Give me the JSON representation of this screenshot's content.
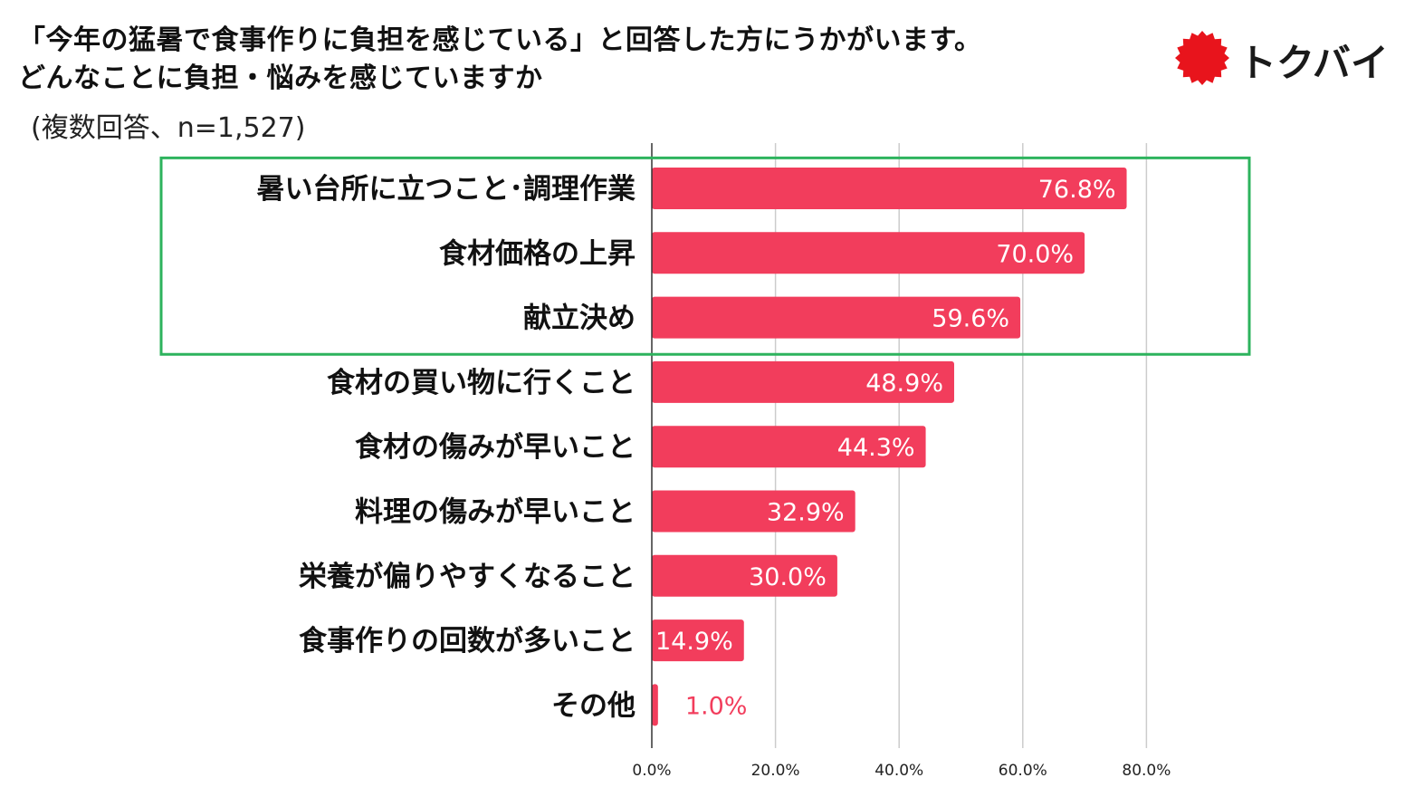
{
  "header": {
    "title_line1": "「今年の猛暑で食事作りに負担を感じている」と回答した方にうかがいます。",
    "title_line2": "どんなことに負担・悩みを感じていますか",
    "subtitle": "(複数回答、n=1,527)"
  },
  "logo": {
    "text": "トクバイ",
    "mark_color": "#e8141c"
  },
  "chart_data": {
    "type": "bar",
    "orientation": "horizontal",
    "title": "「今年の猛暑で食事作りに負担を感じている」と回答した方にうかがいます。どんなことに負担・悩みを感じていますか",
    "categories": [
      "暑い台所に立つこと･調理作業",
      "食材価格の上昇",
      "献立決め",
      "食材の買い物に行くこと",
      "食材の傷みが早いこと",
      "料理の傷みが早いこと",
      "栄養が偏りやすくなること",
      "食事作りの回数が多いこと",
      "その他"
    ],
    "values": [
      76.8,
      70.0,
      59.6,
      48.9,
      44.3,
      32.9,
      30.0,
      14.9,
      1.0
    ],
    "value_labels": [
      "76.8%",
      "70.0%",
      "59.6%",
      "48.9%",
      "44.3%",
      "32.9%",
      "30.0%",
      "14.9%",
      "1.0%"
    ],
    "xticks": [
      0,
      20,
      40,
      60,
      80
    ],
    "xtick_labels": [
      "0.0%",
      "20.0%",
      "40.0%",
      "60.0%",
      "80.0%"
    ],
    "xlim": [
      0,
      80
    ],
    "grid": true,
    "highlight_top_n": 3,
    "colors": {
      "bar": "#f23d5c",
      "grid": "#cccccc",
      "axis": "#333333",
      "highlight_box": "#2db35d",
      "label_inside": "#ffffff"
    }
  }
}
